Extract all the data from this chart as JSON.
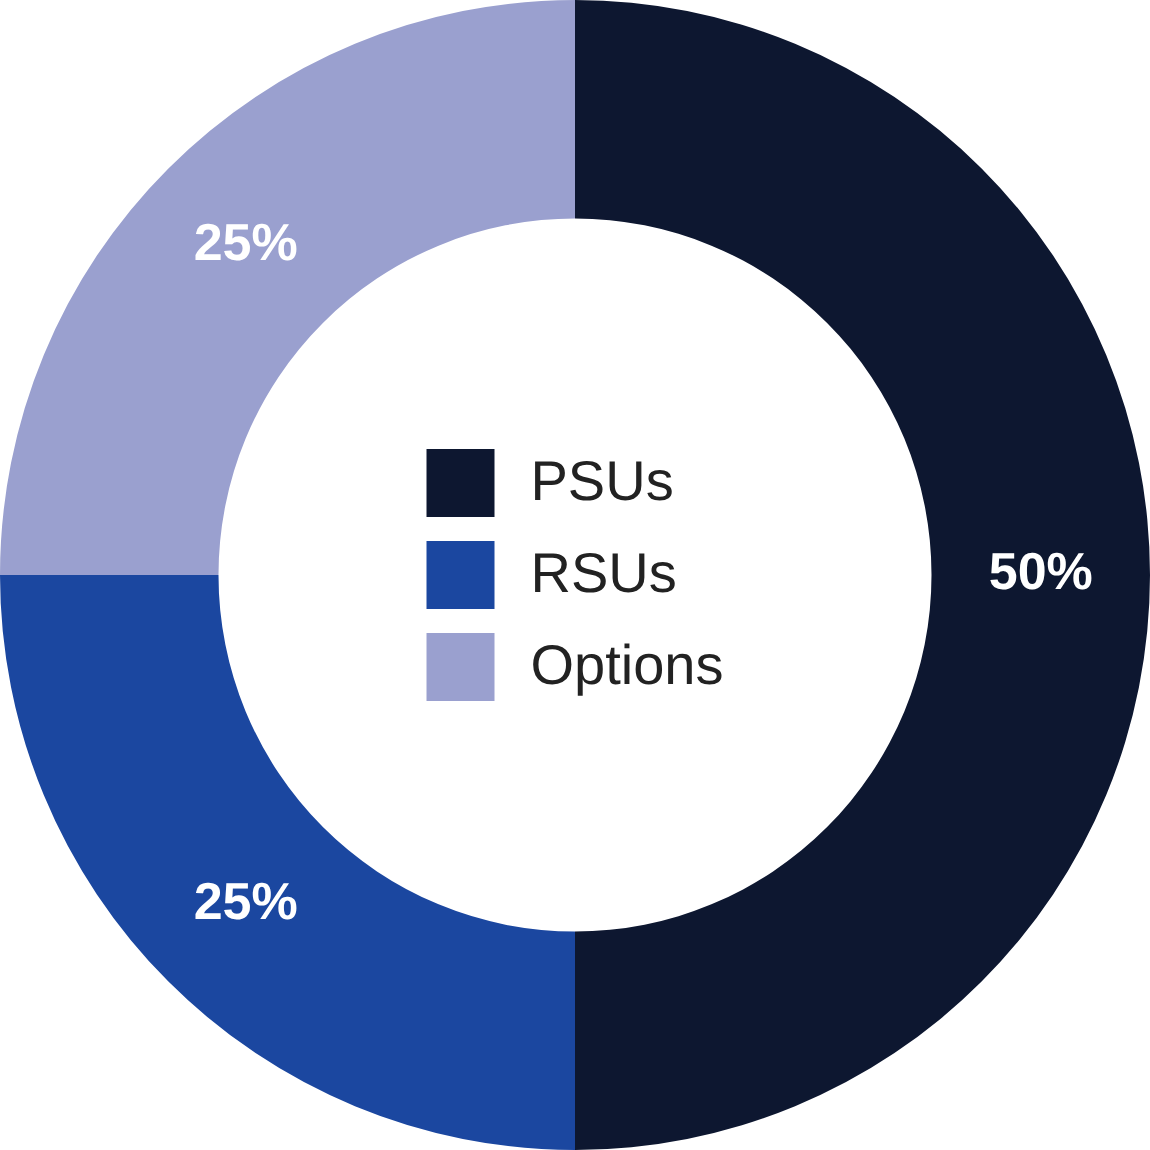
{
  "chart_data": {
    "type": "donut",
    "categories": [
      "PSUs",
      "RSUs",
      "Options"
    ],
    "values": [
      50,
      25,
      25
    ],
    "colors": [
      "#0d1730",
      "#1b47a0",
      "#9aa0cf"
    ],
    "value_labels": [
      "50%",
      "25%",
      "25%"
    ],
    "legend": "center"
  }
}
